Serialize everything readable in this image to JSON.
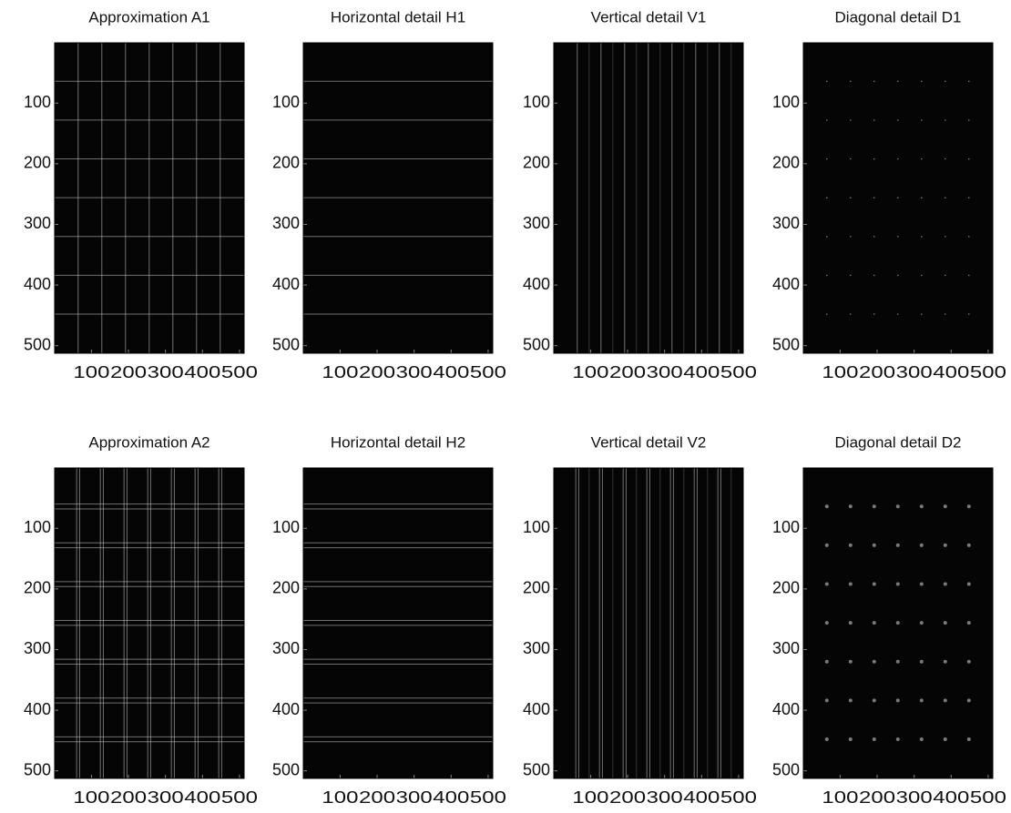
{
  "chart_data": [
    {
      "type": "image",
      "title": "Approximation A1",
      "xlim": [
        0.5,
        512.5
      ],
      "ylim": [
        0.5,
        512.5
      ],
      "xticks": [
        100,
        200,
        300,
        400,
        500
      ],
      "yticks": [
        100,
        200,
        300,
        400,
        500
      ]
    },
    {
      "type": "image",
      "title": "Horizontal detail H1",
      "xlim": [
        0.5,
        512.5
      ],
      "ylim": [
        0.5,
        512.5
      ],
      "xticks": [
        100,
        200,
        300,
        400,
        500
      ],
      "yticks": [
        100,
        200,
        300,
        400,
        500
      ]
    },
    {
      "type": "image",
      "title": "Vertical detail V1",
      "xlim": [
        0.5,
        512.5
      ],
      "ylim": [
        0.5,
        512.5
      ],
      "xticks": [
        100,
        200,
        300,
        400,
        500
      ],
      "yticks": [
        100,
        200,
        300,
        400,
        500
      ]
    },
    {
      "type": "image",
      "title": "Diagonal detail D1",
      "xlim": [
        0.5,
        512.5
      ],
      "ylim": [
        0.5,
        512.5
      ],
      "xticks": [
        100,
        200,
        300,
        400,
        500
      ],
      "yticks": [
        100,
        200,
        300,
        400,
        500
      ]
    },
    {
      "type": "image",
      "title": "Approximation A2",
      "xlim": [
        0.5,
        512.5
      ],
      "ylim": [
        0.5,
        512.5
      ],
      "xticks": [
        100,
        200,
        300,
        400,
        500
      ],
      "yticks": [
        100,
        200,
        300,
        400,
        500
      ]
    },
    {
      "type": "image",
      "title": "Horizontal detail H2",
      "xlim": [
        0.5,
        512.5
      ],
      "ylim": [
        0.5,
        512.5
      ],
      "xticks": [
        100,
        200,
        300,
        400,
        500
      ],
      "yticks": [
        100,
        200,
        300,
        400,
        500
      ]
    },
    {
      "type": "image",
      "title": "Vertical detail V2",
      "xlim": [
        0.5,
        512.5
      ],
      "ylim": [
        0.5,
        512.5
      ],
      "xticks": [
        100,
        200,
        300,
        400,
        500
      ],
      "yticks": [
        100,
        200,
        300,
        400,
        500
      ]
    },
    {
      "type": "image",
      "title": "Diagonal detail D2",
      "xlim": [
        0.5,
        512.5
      ],
      "ylim": [
        0.5,
        512.5
      ],
      "xticks": [
        100,
        200,
        300,
        400,
        500
      ],
      "yticks": [
        100,
        200,
        300,
        400,
        500
      ]
    }
  ]
}
